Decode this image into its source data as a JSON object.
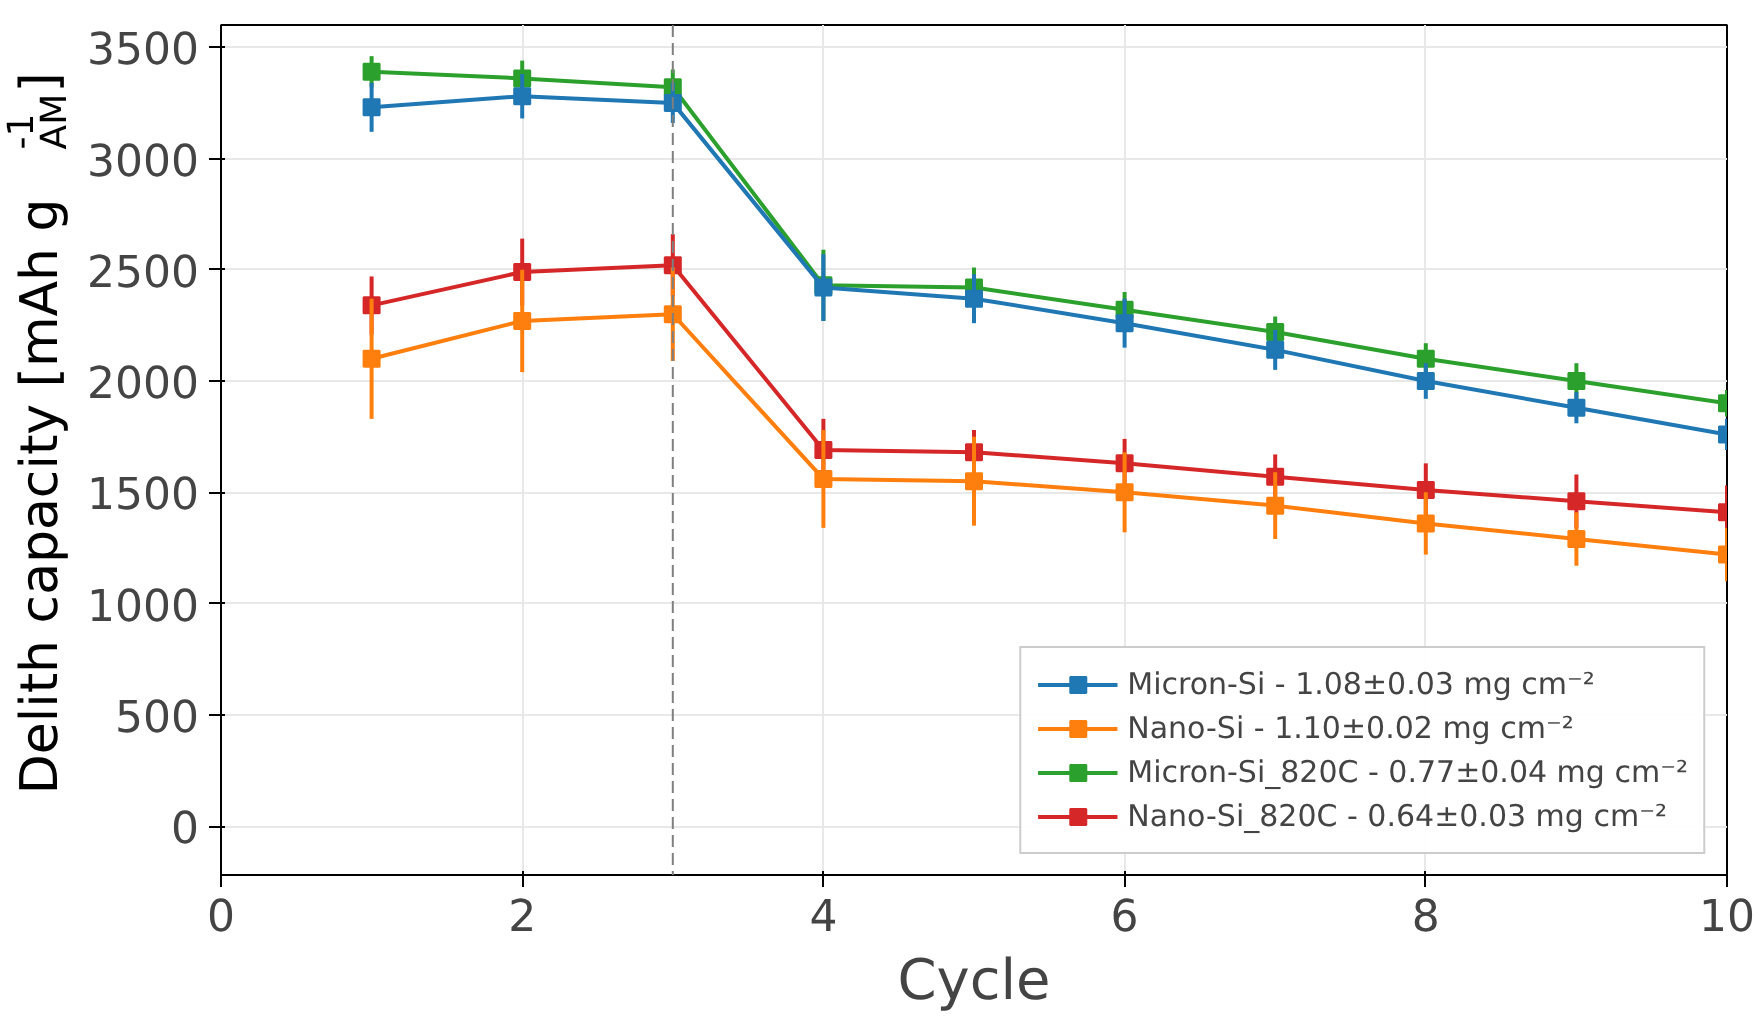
{
  "chart_data": {
    "type": "line",
    "xlabel": "Cycle",
    "ylabel": "Delith capacity [mAh g$_{AM}$$^{-1}$]",
    "x": [
      1,
      2,
      3,
      4,
      5,
      6,
      7,
      8,
      9,
      10
    ],
    "series": [
      {
        "name": "Micron-Si - 1.08±0.03 mg cm⁻²",
        "color": "#1f77b4",
        "values": [
          3230,
          3280,
          3250,
          2420,
          2370,
          2260,
          2140,
          2000,
          1880,
          1760
        ],
        "errors": [
          110,
          100,
          90,
          150,
          110,
          110,
          90,
          80,
          70,
          70
        ]
      },
      {
        "name": "Nano-Si - 1.10±0.02 mg cm⁻²",
        "color": "#ff7f0e",
        "values": [
          2100,
          2270,
          2300,
          1560,
          1550,
          1500,
          1440,
          1360,
          1290,
          1220
        ],
        "errors": [
          270,
          230,
          210,
          220,
          200,
          180,
          150,
          140,
          120,
          120
        ]
      },
      {
        "name": "Micron-Si_820C - 0.77±0.04 mg cm⁻²",
        "color": "#2ca02c",
        "values": [
          3390,
          3360,
          3320,
          2430,
          2420,
          2320,
          2220,
          2100,
          2000,
          1900
        ],
        "errors": [
          70,
          80,
          80,
          160,
          90,
          80,
          70,
          70,
          80,
          60
        ]
      },
      {
        "name": "Nano-Si_820C - 0.64±0.03 mg cm⁻²",
        "color": "#d62728",
        "values": [
          2340,
          2490,
          2520,
          1690,
          1680,
          1630,
          1570,
          1510,
          1460,
          1410
        ],
        "errors": [
          130,
          150,
          140,
          140,
          100,
          110,
          100,
          120,
          120,
          120
        ]
      }
    ],
    "xlim": [
      0,
      10
    ],
    "ylim": [
      -220,
      3600
    ],
    "xticks": [
      0,
      2,
      4,
      6,
      8,
      10
    ],
    "yticks": [
      0,
      500,
      1000,
      1500,
      2000,
      2500,
      3000,
      3500
    ],
    "ref_lines": [
      {
        "axis": "x",
        "value": 3,
        "color": "#7f7f7f",
        "line_style": "dashed"
      }
    ],
    "grid": true,
    "legend": "bottom right",
    "marker": "square",
    "line_style": "solid"
  }
}
